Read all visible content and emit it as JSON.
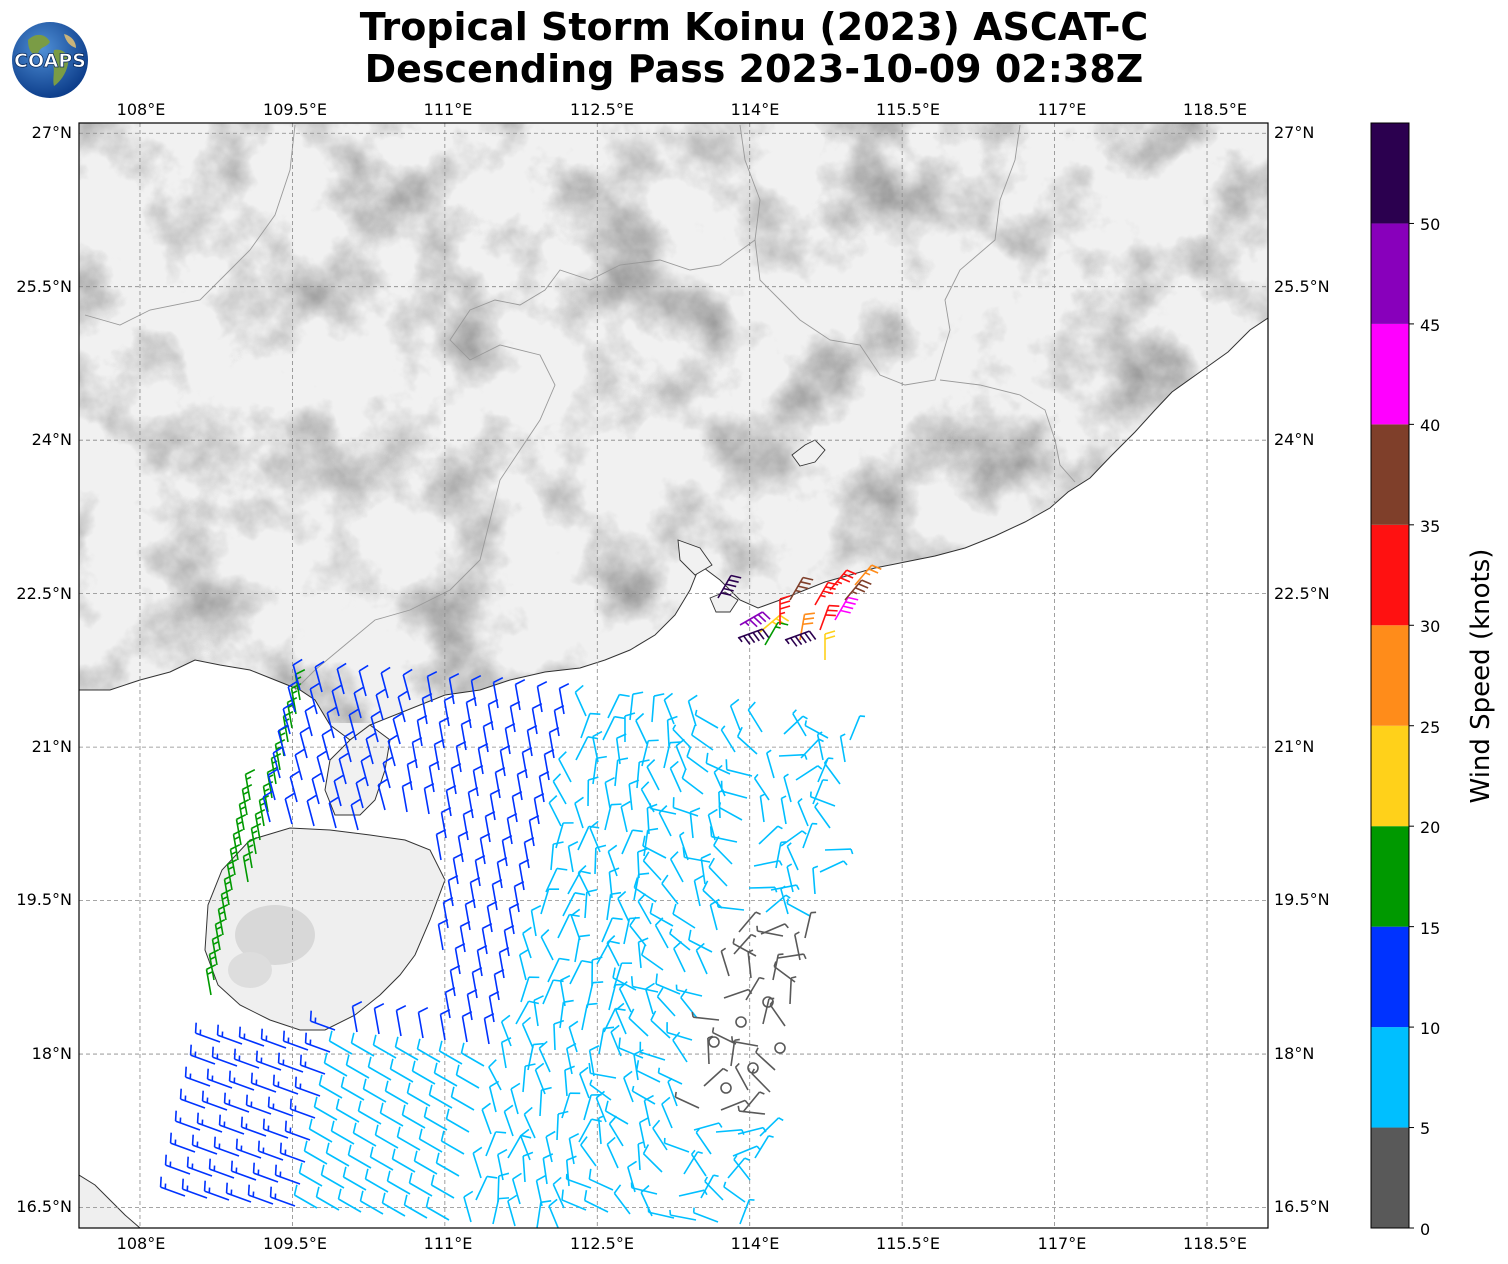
{
  "title": {
    "line1": "Tropical Storm Koinu (2023) ASCAT-C",
    "line2": "Descending Pass 2023-10-09 02:38Z"
  },
  "logo": {
    "text": "COAPS",
    "icon": "globe-icon"
  },
  "map": {
    "lon_range": [
      107.4,
      119.1
    ],
    "lat_range": [
      16.3,
      27.1
    ],
    "lon_ticks": [
      "108°E",
      "109.5°E",
      "111°E",
      "112.5°E",
      "114°E",
      "115.5°E",
      "117°E",
      "118.5°E"
    ],
    "lat_ticks": [
      "27°N",
      "25.5°N",
      "24°N",
      "22.5°N",
      "21°N",
      "19.5°N",
      "18°N",
      "16.5°N"
    ],
    "background": "grayscale topography",
    "grid": true
  },
  "colorbar": {
    "label": "Wind Speed (knots)",
    "ticks": [
      "0",
      "5",
      "10",
      "15",
      "20",
      "25",
      "30",
      "35",
      "40",
      "45",
      "50"
    ],
    "bins": [
      {
        "min": 0,
        "max": 5,
        "color": "#595959"
      },
      {
        "min": 5,
        "max": 10,
        "color": "#00bfff"
      },
      {
        "min": 10,
        "max": 15,
        "color": "#0033ff"
      },
      {
        "min": 15,
        "max": 20,
        "color": "#009900"
      },
      {
        "min": 20,
        "max": 25,
        "color": "#ffd11a"
      },
      {
        "min": 25,
        "max": 30,
        "color": "#ff8c1a"
      },
      {
        "min": 30,
        "max": 35,
        "color": "#ff1111"
      },
      {
        "min": 35,
        "max": 40,
        "color": "#7f3f2a"
      },
      {
        "min": 40,
        "max": 45,
        "color": "#ff00ff"
      },
      {
        "min": 45,
        "max": 50,
        "color": "#8800bb"
      },
      {
        "min": 50,
        "max": 55,
        "color": "#2b004f"
      }
    ]
  }
}
